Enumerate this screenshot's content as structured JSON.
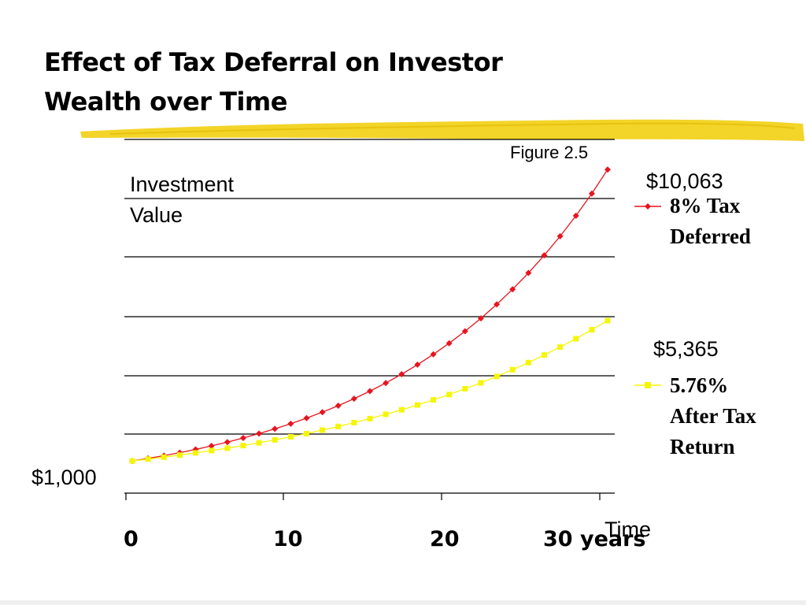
{
  "slide": {
    "title_line1": "Effect of Tax Deferral on Investor",
    "title_line2": "Wealth over Time",
    "figure_label": "Figure 2.5",
    "accent_stroke_color": "#f2d21c"
  },
  "chart_data": {
    "type": "line",
    "ylabel_line1": "Investment",
    "ylabel_line2": "Value",
    "start_label": "$1,000",
    "xlabel": "Time",
    "x_tick_labels": [
      "0",
      "10",
      "20",
      "30 years"
    ],
    "x_ticks": [
      0,
      10,
      20,
      30
    ],
    "xlim": [
      0,
      30.5
    ],
    "ylim": [
      0,
      11000
    ],
    "grid": true,
    "series": [
      {
        "name_line1": "8% Tax",
        "name_line2": "Deferred",
        "end_label": "$10,063",
        "color": "#e8141e",
        "marker": "diamond",
        "x": [
          0,
          1,
          2,
          3,
          4,
          5,
          6,
          7,
          8,
          9,
          10,
          11,
          12,
          13,
          14,
          15,
          16,
          17,
          18,
          19,
          20,
          21,
          22,
          23,
          24,
          25,
          26,
          27,
          28,
          29,
          30
        ],
        "values": [
          1000,
          1080,
          1166,
          1260,
          1360,
          1469,
          1587,
          1714,
          1851,
          1999,
          2159,
          2332,
          2518,
          2720,
          2937,
          3172,
          3426,
          3700,
          3996,
          4316,
          4661,
          5034,
          5437,
          5871,
          6341,
          6848,
          7396,
          7988,
          8627,
          9317,
          10063
        ]
      },
      {
        "name_line1": "5.76%",
        "name_line2": "After Tax",
        "name_line3": "Return",
        "end_label": "$5,365",
        "color": "#f5f50a",
        "marker": "square",
        "x": [
          0,
          1,
          2,
          3,
          4,
          5,
          6,
          7,
          8,
          9,
          10,
          11,
          12,
          13,
          14,
          15,
          16,
          17,
          18,
          19,
          20,
          21,
          22,
          23,
          24,
          25,
          26,
          27,
          28,
          29,
          30
        ],
        "values": [
          1000,
          1058,
          1119,
          1183,
          1251,
          1323,
          1400,
          1480,
          1566,
          1656,
          1752,
          1853,
          1959,
          2072,
          2192,
          2318,
          2452,
          2593,
          2742,
          2900,
          3068,
          3245,
          3431,
          3629,
          3839,
          4060,
          4294,
          4541,
          4803,
          5080,
          5365
        ]
      }
    ]
  }
}
